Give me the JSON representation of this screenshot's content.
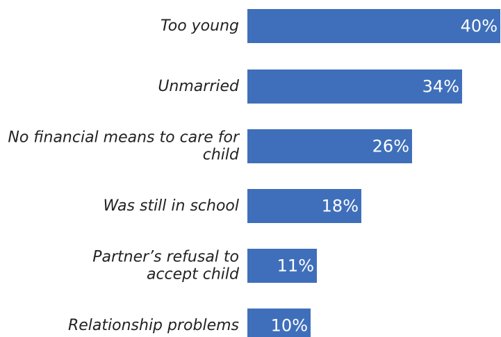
{
  "chart_data": {
    "type": "bar",
    "orientation": "horizontal",
    "categories": [
      [
        "Too young"
      ],
      [
        "Unmarried"
      ],
      [
        "No financial means to care for",
        "child"
      ],
      [
        "Was still in school"
      ],
      [
        "Partner’s refusal to",
        "accept child"
      ],
      [
        "Relationship problems"
      ]
    ],
    "values": [
      40,
      34,
      26,
      18,
      11,
      10
    ],
    "value_labels": [
      "40%",
      "34%",
      "26%",
      "18%",
      "11%",
      "10%"
    ],
    "unit": "%",
    "xlim": [
      0,
      40
    ],
    "grid": false,
    "legend": "none",
    "title": "",
    "xlabel": "",
    "ylabel": "",
    "bar_color": "#3f6fba"
  }
}
